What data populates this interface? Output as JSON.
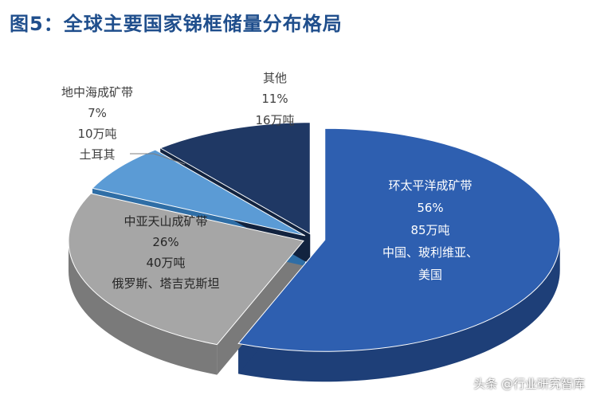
{
  "title": "图5：全球主要国家锑框储量分布格局",
  "watermark": "头条 @行业研究智库",
  "chart_data": {
    "type": "pie",
    "slices": [
      {
        "label": "环太平洋成矿带",
        "percent": "56%",
        "reserve": "85万吨",
        "note": [
          "中国、玻利维亚、",
          "美国"
        ],
        "value": 56,
        "color": "#2e5fb0",
        "side_color": "#1e3f78"
      },
      {
        "label": "中亚天山成矿带",
        "percent": "26%",
        "reserve": "40万吨",
        "note": [
          "俄罗斯、塔吉克斯坦"
        ],
        "value": 26,
        "color": "#a6a6a6",
        "side_color": "#7a7a7a"
      },
      {
        "label": "地中海成矿带",
        "percent": "7%",
        "reserve": "10万吨",
        "note": [
          "土耳其"
        ],
        "value": 7,
        "color": "#5b9bd5",
        "side_color": "#2f6ea6"
      },
      {
        "label": "其他",
        "percent": "11%",
        "reserve": "16万吨",
        "note": [],
        "value": 11,
        "color": "#1f3864",
        "side_color": "#12233f"
      }
    ]
  }
}
